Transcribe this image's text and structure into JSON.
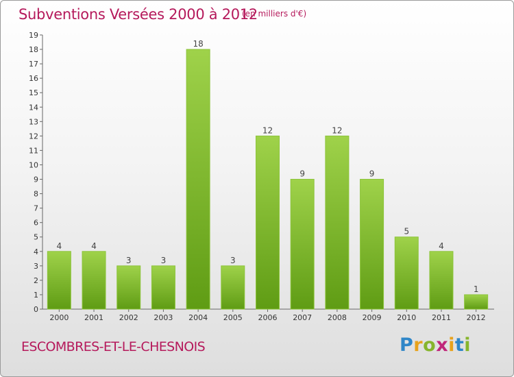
{
  "header": {
    "title": "Subventions Versées 2000 à 2012",
    "unit": "(en milliers d'€)"
  },
  "footer": {
    "commune": "ESCOMBRES-ET-LE-CHESNOIS",
    "brand": "Proxiti"
  },
  "colors": {
    "title": "#b5195b",
    "bar_light": "#9fd24a",
    "bar_dark": "#5f9c14"
  },
  "chart_data": {
    "type": "bar",
    "title": "Subventions Versées 2000 à 2012",
    "subtitle": "(en milliers d'€)",
    "xlabel": "",
    "ylabel": "",
    "categories": [
      "2000",
      "2001",
      "2002",
      "2003",
      "2004",
      "2005",
      "2006",
      "2007",
      "2008",
      "2009",
      "2010",
      "2011",
      "2012"
    ],
    "values": [
      4,
      4,
      3,
      3,
      18,
      3,
      12,
      9,
      12,
      9,
      5,
      4,
      1
    ],
    "ylim": [
      0,
      19
    ],
    "yticks": [
      0,
      1,
      2,
      3,
      4,
      5,
      6,
      7,
      8,
      9,
      10,
      11,
      12,
      13,
      14,
      15,
      16,
      17,
      18,
      19
    ],
    "grid": false,
    "legend": "none"
  }
}
